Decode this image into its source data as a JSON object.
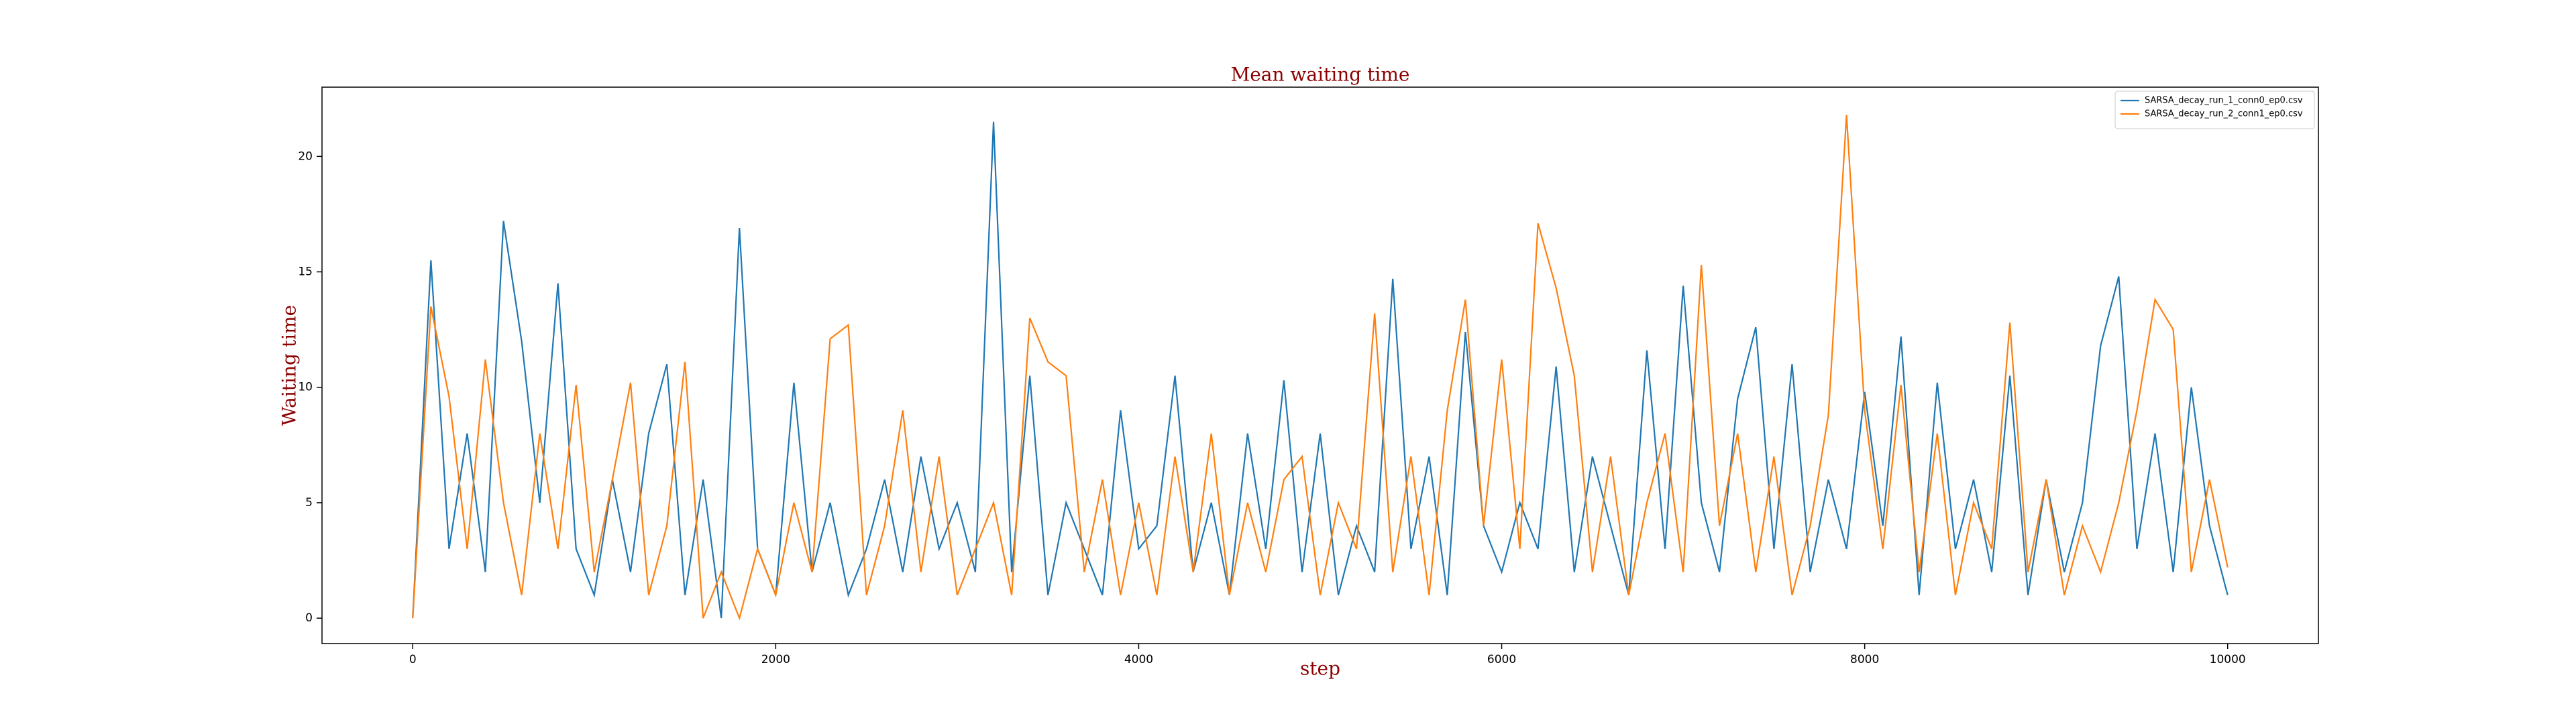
{
  "chart_data": {
    "type": "line",
    "title": "Mean waiting time",
    "xlabel": "step",
    "ylabel": "Waiting time",
    "xlim": [
      -500,
      10500
    ],
    "ylim": [
      -1.1,
      23.0
    ],
    "xticks": [
      0,
      2000,
      4000,
      6000,
      8000,
      10000
    ],
    "yticks": [
      0,
      5,
      10,
      15,
      20
    ],
    "grid": false,
    "legend": "upper right",
    "x": [
      0,
      100,
      200,
      300,
      400,
      500,
      600,
      700,
      800,
      900,
      1000,
      1100,
      1200,
      1300,
      1400,
      1500,
      1600,
      1700,
      1800,
      1900,
      2000,
      2100,
      2200,
      2300,
      2400,
      2500,
      2600,
      2700,
      2800,
      2900,
      3000,
      3100,
      3200,
      3300,
      3400,
      3500,
      3600,
      3700,
      3800,
      3900,
      4000,
      4100,
      4200,
      4300,
      4400,
      4500,
      4600,
      4700,
      4800,
      4900,
      5000,
      5100,
      5200,
      5300,
      5400,
      5500,
      5600,
      5700,
      5800,
      5900,
      6000,
      6100,
      6200,
      6300,
      6400,
      6500,
      6600,
      6700,
      6800,
      6900,
      7000,
      7100,
      7200,
      7300,
      7400,
      7500,
      7600,
      7700,
      7800,
      7900,
      8000,
      8100,
      8200,
      8300,
      8400,
      8500,
      8600,
      8700,
      8800,
      8900,
      9000,
      9100,
      9200,
      9300,
      9400,
      9500,
      9600,
      9700,
      9800,
      9900,
      10000
    ],
    "series": [
      {
        "name": "SARSA_decay_run_1_conn0_ep0.csv",
        "color": "#1f77b4",
        "values": [
          0,
          15.5,
          3,
          8,
          2,
          17.2,
          12,
          5,
          14.5,
          3,
          1,
          6,
          2,
          8,
          11,
          1,
          6,
          0,
          16.9,
          3,
          1,
          10.2,
          2,
          5,
          1,
          3,
          6,
          2,
          7,
          3,
          5,
          2,
          21.5,
          2,
          10.5,
          1,
          5,
          3,
          1,
          9,
          3,
          4,
          10.5,
          2,
          5,
          1,
          8,
          3,
          10.3,
          2,
          8,
          1,
          4,
          2,
          14.7,
          3,
          7,
          1,
          12.4,
          4,
          2,
          5,
          3,
          10.9,
          2,
          7,
          4,
          1,
          11.6,
          3,
          14.4,
          5,
          2,
          9.5,
          12.6,
          3,
          11,
          2,
          6,
          3,
          9.8,
          4,
          12.2,
          1,
          10.2,
          3,
          6,
          2,
          10.5,
          1,
          6,
          2,
          5,
          11.8,
          14.8,
          3,
          8,
          2,
          10,
          4,
          1
        ]
      },
      {
        "name": "SARSA_decay_run_2_conn1_ep0.csv",
        "color": "#ff7f0e",
        "values": [
          0,
          13.5,
          9.6,
          3,
          11.2,
          5,
          1,
          8,
          3,
          10.1,
          2,
          6,
          10.2,
          1,
          4,
          11.1,
          0,
          2,
          0,
          3,
          1,
          5,
          2,
          12.1,
          12.7,
          1,
          4,
          9,
          2,
          7,
          1,
          3,
          5,
          1,
          13,
          11.1,
          10.5,
          2,
          6,
          1,
          5,
          1,
          7,
          2,
          8,
          1,
          5,
          2,
          6,
          7,
          1,
          5,
          3,
          13.2,
          2,
          7,
          1,
          9,
          13.8,
          4,
          11.2,
          3,
          17.1,
          14.3,
          10.5,
          2,
          7,
          1,
          5,
          8,
          2,
          15.3,
          4,
          8,
          2,
          7,
          1,
          4,
          8.8,
          21.8,
          9,
          3,
          10.1,
          2,
          8,
          1,
          5,
          3,
          12.8,
          2,
          6,
          1,
          4,
          2,
          5,
          9,
          13.8,
          12.5,
          2,
          6,
          2.2
        ]
      }
    ]
  }
}
